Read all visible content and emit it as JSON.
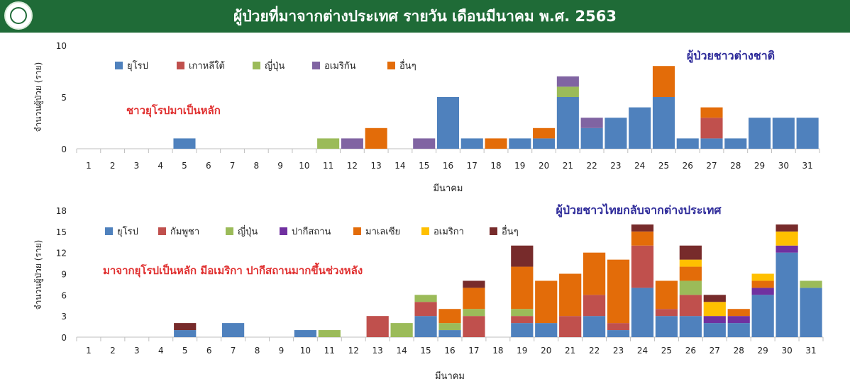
{
  "header": {
    "title": "ผู้ป่วยที่มาจากต่างประเทศ รายวัน เดือนมีนาคม พ.ศ. 2563",
    "logo_icon": "ministry-of-public-health-logo-icon",
    "bg_color": "#1f6b37"
  },
  "chart_data": [
    {
      "type": "bar",
      "stacked": true,
      "title": "ผู้ป่วยชาวต่างชาติ",
      "annotation": "ชาวยุโรปมาเป็นหลัก",
      "xlabel": "มีนาคม",
      "ylabel": "จำนวนผู้ป่วย (ราย)",
      "ylim": [
        0,
        10
      ],
      "yticks": [
        "0",
        "5",
        "10"
      ],
      "categories": [
        "1",
        "2",
        "3",
        "4",
        "5",
        "6",
        "7",
        "8",
        "9",
        "10",
        "11",
        "12",
        "13",
        "14",
        "15",
        "16",
        "17",
        "18",
        "19",
        "20",
        "21",
        "22",
        "23",
        "24",
        "25",
        "26",
        "27",
        "28",
        "29",
        "30",
        "31"
      ],
      "legend_position": "top-left",
      "series": [
        {
          "name": "ยุโรป",
          "color": "#4f81bd",
          "values": [
            0,
            0,
            0,
            0,
            1,
            0,
            0,
            0,
            0,
            0,
            0,
            0,
            0,
            0,
            0,
            5,
            1,
            0,
            1,
            1,
            5,
            2,
            3,
            4,
            5,
            1,
            1,
            1,
            3,
            3,
            3
          ]
        },
        {
          "name": "เกาหลีใต้",
          "color": "#c0504d",
          "values": [
            0,
            0,
            0,
            0,
            0,
            0,
            0,
            0,
            0,
            0,
            0,
            0,
            0,
            0,
            0,
            0,
            0,
            0,
            0,
            0,
            0,
            0,
            0,
            0,
            0,
            0,
            2,
            0,
            0,
            0,
            0
          ]
        },
        {
          "name": "ญี่ปุ่น",
          "color": "#9bbb59",
          "values": [
            0,
            0,
            0,
            0,
            0,
            0,
            0,
            0,
            0,
            0,
            1,
            0,
            0,
            0,
            0,
            0,
            0,
            0,
            0,
            0,
            1,
            0,
            0,
            0,
            0,
            0,
            0,
            0,
            0,
            0,
            0
          ]
        },
        {
          "name": "อเมริกัน",
          "color": "#8064a2",
          "values": [
            0,
            0,
            0,
            0,
            0,
            0,
            0,
            0,
            0,
            0,
            0,
            1,
            0,
            0,
            1,
            0,
            0,
            0,
            0,
            0,
            1,
            1,
            0,
            0,
            0,
            0,
            0,
            0,
            0,
            0,
            0
          ]
        },
        {
          "name": "อื่นๆ",
          "color": "#e36c09",
          "values": [
            0,
            0,
            0,
            0,
            0,
            0,
            0,
            0,
            0,
            0,
            0,
            0,
            2,
            0,
            0,
            0,
            0,
            1,
            0,
            1,
            0,
            0,
            0,
            0,
            3,
            0,
            1,
            0,
            0,
            0,
            0
          ]
        }
      ]
    },
    {
      "type": "bar",
      "stacked": true,
      "title": "ผู้ป่วยชาวไทยกลับจากต่างประเทศ",
      "annotation": "มาจากยุโรปเป็นหลัก มีอเมริกา ปากีสถานมากขึ้นช่วงหลัง",
      "xlabel": "มีนาคม",
      "ylabel": "จำนวนผู้ป่วย (ราย)",
      "ylim": [
        0,
        18
      ],
      "yticks": [
        "0",
        "3",
        "6",
        "9",
        "12",
        "15",
        "18"
      ],
      "categories": [
        "1",
        "2",
        "3",
        "4",
        "5",
        "6",
        "7",
        "8",
        "9",
        "10",
        "11",
        "12",
        "13",
        "14",
        "15",
        "16",
        "17",
        "18",
        "19",
        "20",
        "21",
        "22",
        "23",
        "24",
        "25",
        "26",
        "27",
        "28",
        "29",
        "30",
        "31"
      ],
      "legend_position": "top-left",
      "series": [
        {
          "name": "ยุโรป",
          "color": "#4f81bd",
          "values": [
            0,
            0,
            0,
            0,
            1,
            0,
            2,
            0,
            0,
            1,
            0,
            0,
            0,
            0,
            3,
            1,
            0,
            0,
            2,
            2,
            0,
            3,
            1,
            7,
            3,
            3,
            2,
            2,
            6,
            12,
            7
          ]
        },
        {
          "name": "กัมพูชา",
          "color": "#c0504d",
          "values": [
            0,
            0,
            0,
            0,
            0,
            0,
            0,
            0,
            0,
            0,
            0,
            0,
            3,
            0,
            2,
            0,
            3,
            0,
            1,
            0,
            3,
            3,
            1,
            6,
            1,
            3,
            0,
            0,
            0,
            0,
            0
          ]
        },
        {
          "name": "ญี่ปุ่น",
          "color": "#9bbb59",
          "values": [
            0,
            0,
            0,
            0,
            0,
            0,
            0,
            0,
            0,
            0,
            1,
            0,
            0,
            2,
            1,
            1,
            1,
            0,
            1,
            0,
            0,
            0,
            0,
            0,
            0,
            2,
            0,
            0,
            0,
            0,
            1
          ]
        },
        {
          "name": "ปากีสถาน",
          "color": "#7030a0",
          "values": [
            0,
            0,
            0,
            0,
            0,
            0,
            0,
            0,
            0,
            0,
            0,
            0,
            0,
            0,
            0,
            0,
            0,
            0,
            0,
            0,
            0,
            0,
            0,
            0,
            0,
            0,
            1,
            1,
            1,
            1,
            0
          ]
        },
        {
          "name": "มาเลเซีย",
          "color": "#e36c09",
          "values": [
            0,
            0,
            0,
            0,
            0,
            0,
            0,
            0,
            0,
            0,
            0,
            0,
            0,
            0,
            0,
            2,
            3,
            0,
            6,
            6,
            6,
            6,
            9,
            2,
            4,
            2,
            0,
            1,
            1,
            0,
            0
          ]
        },
        {
          "name": "อเมริกา",
          "color": "#ffc000",
          "values": [
            0,
            0,
            0,
            0,
            0,
            0,
            0,
            0,
            0,
            0,
            0,
            0,
            0,
            0,
            0,
            0,
            0,
            0,
            0,
            0,
            0,
            0,
            0,
            0,
            0,
            1,
            2,
            0,
            1,
            2,
            0
          ]
        },
        {
          "name": "อื่นๆ",
          "color": "#772b2b",
          "values": [
            0,
            0,
            0,
            0,
            1,
            0,
            0,
            0,
            0,
            0,
            0,
            0,
            0,
            0,
            0,
            0,
            1,
            0,
            3,
            0,
            0,
            0,
            0,
            1,
            0,
            2,
            1,
            0,
            0,
            1,
            0
          ]
        }
      ]
    }
  ]
}
